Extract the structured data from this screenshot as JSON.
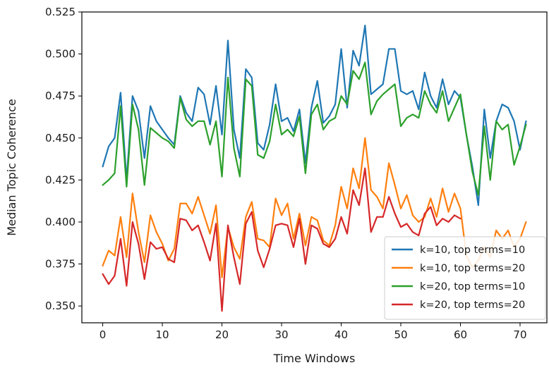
{
  "chart_data": {
    "type": "line",
    "title": "",
    "xlabel": "Time Windows",
    "ylabel": "Median Topic Coherence",
    "xlim": [
      -3.5,
      74.5
    ],
    "ylim": [
      0.34,
      0.525
    ],
    "x_ticks": [
      0,
      10,
      20,
      30,
      40,
      50,
      60,
      70
    ],
    "y_ticks": [
      0.35,
      0.375,
      0.4,
      0.425,
      0.45,
      0.475,
      0.5,
      0.525
    ],
    "y_tick_labels": [
      "0.350",
      "0.375",
      "0.400",
      "0.425",
      "0.450",
      "0.475",
      "0.500",
      "0.525"
    ],
    "grid": false,
    "legend_position": "lower-right",
    "series": [
      {
        "name": "k=10, top terms=10",
        "color": "#1f77b4",
        "x": [
          0,
          1,
          2,
          3,
          4,
          5,
          6,
          7,
          8,
          9,
          10,
          11,
          12,
          13,
          14,
          15,
          16,
          17,
          18,
          19,
          20,
          21,
          22,
          23,
          24,
          25,
          26,
          27,
          28,
          29,
          30,
          31,
          32,
          33,
          34,
          35,
          36,
          37,
          38,
          39,
          40,
          41,
          42,
          43,
          44,
          45,
          46,
          47,
          48,
          49,
          50,
          51,
          52,
          53,
          54,
          55,
          56,
          57,
          58,
          59,
          60,
          61,
          62,
          63,
          64,
          65,
          66,
          67,
          68,
          69,
          70,
          71
        ],
        "values": [
          0.433,
          0.445,
          0.45,
          0.477,
          0.425,
          0.475,
          0.466,
          0.438,
          0.469,
          0.46,
          0.455,
          0.45,
          0.446,
          0.475,
          0.465,
          0.46,
          0.48,
          0.476,
          0.458,
          0.481,
          0.452,
          0.508,
          0.455,
          0.438,
          0.491,
          0.486,
          0.447,
          0.443,
          0.458,
          0.482,
          0.46,
          0.462,
          0.454,
          0.467,
          0.435,
          0.468,
          0.484,
          0.459,
          0.463,
          0.47,
          0.503,
          0.468,
          0.502,
          0.493,
          0.517,
          0.476,
          0.479,
          0.482,
          0.503,
          0.503,
          0.478,
          0.476,
          0.478,
          0.467,
          0.489,
          0.475,
          0.468,
          0.485,
          0.47,
          0.478,
          0.474,
          0.452,
          0.433,
          0.41,
          0.467,
          0.438,
          0.46,
          0.47,
          0.468,
          0.46,
          0.443,
          0.46
        ]
      },
      {
        "name": "k=10, top terms=20",
        "color": "#ff7f0e",
        "x": [
          0,
          1,
          2,
          3,
          4,
          5,
          6,
          7,
          8,
          9,
          10,
          11,
          12,
          13,
          14,
          15,
          16,
          17,
          18,
          19,
          20,
          21,
          22,
          23,
          24,
          25,
          26,
          27,
          28,
          29,
          30,
          31,
          32,
          33,
          34,
          35,
          36,
          37,
          38,
          39,
          40,
          41,
          42,
          43,
          44,
          45,
          46,
          47,
          48,
          49,
          50,
          51,
          52,
          53,
          54,
          55,
          56,
          57,
          58,
          59,
          60,
          61,
          62,
          63,
          64,
          65,
          66,
          67,
          68,
          69,
          70,
          71
        ],
        "values": [
          0.374,
          0.383,
          0.38,
          0.403,
          0.379,
          0.417,
          0.394,
          0.376,
          0.404,
          0.394,
          0.387,
          0.377,
          0.384,
          0.411,
          0.411,
          0.405,
          0.415,
          0.404,
          0.393,
          0.41,
          0.367,
          0.397,
          0.385,
          0.378,
          0.403,
          0.412,
          0.39,
          0.389,
          0.385,
          0.414,
          0.404,
          0.411,
          0.39,
          0.405,
          0.386,
          0.403,
          0.401,
          0.389,
          0.386,
          0.398,
          0.421,
          0.408,
          0.432,
          0.42,
          0.45,
          0.419,
          0.415,
          0.408,
          0.435,
          0.422,
          0.408,
          0.416,
          0.404,
          0.4,
          0.403,
          0.414,
          0.403,
          0.42,
          0.406,
          0.417,
          0.408,
          0.38,
          0.373,
          0.377,
          0.385,
          0.379,
          0.395,
          0.39,
          0.395,
          0.385,
          0.39,
          0.4
        ]
      },
      {
        "name": "k=20, top terms=10",
        "color": "#2ca02c",
        "x": [
          0,
          1,
          2,
          3,
          4,
          5,
          6,
          7,
          8,
          9,
          10,
          11,
          12,
          13,
          14,
          15,
          16,
          17,
          18,
          19,
          20,
          21,
          22,
          23,
          24,
          25,
          26,
          27,
          28,
          29,
          30,
          31,
          32,
          33,
          34,
          35,
          36,
          37,
          38,
          39,
          40,
          41,
          42,
          43,
          44,
          45,
          46,
          47,
          48,
          49,
          50,
          51,
          52,
          53,
          54,
          55,
          56,
          57,
          58,
          59,
          60,
          61,
          62,
          63,
          64,
          65,
          66,
          67,
          68,
          69,
          70,
          71
        ],
        "values": [
          0.422,
          0.425,
          0.429,
          0.469,
          0.421,
          0.47,
          0.455,
          0.422,
          0.456,
          0.453,
          0.45,
          0.448,
          0.444,
          0.474,
          0.461,
          0.457,
          0.46,
          0.46,
          0.446,
          0.46,
          0.427,
          0.486,
          0.444,
          0.427,
          0.485,
          0.481,
          0.44,
          0.438,
          0.448,
          0.47,
          0.452,
          0.455,
          0.451,
          0.463,
          0.429,
          0.464,
          0.47,
          0.455,
          0.46,
          0.462,
          0.475,
          0.47,
          0.49,
          0.485,
          0.495,
          0.464,
          0.472,
          0.476,
          0.479,
          0.482,
          0.457,
          0.462,
          0.464,
          0.462,
          0.478,
          0.47,
          0.465,
          0.478,
          0.46,
          0.468,
          0.476,
          0.452,
          0.43,
          0.416,
          0.457,
          0.425,
          0.46,
          0.455,
          0.458,
          0.434,
          0.445,
          0.458
        ]
      },
      {
        "name": "k=20, top terms=20",
        "color": "#d62728",
        "x": [
          0,
          1,
          2,
          3,
          4,
          5,
          6,
          7,
          8,
          9,
          10,
          11,
          12,
          13,
          14,
          15,
          16,
          17,
          18,
          19,
          20,
          21,
          22,
          23,
          24,
          25,
          26,
          27,
          28,
          29,
          30,
          31,
          32,
          33,
          34,
          35,
          36,
          37,
          38,
          39,
          40,
          41,
          42,
          43,
          44,
          45,
          46,
          47,
          48,
          49,
          50,
          51,
          52,
          53,
          54,
          55,
          56,
          57,
          58,
          59,
          60
        ],
        "values": [
          0.369,
          0.363,
          0.368,
          0.39,
          0.362,
          0.4,
          0.387,
          0.366,
          0.388,
          0.384,
          0.385,
          0.378,
          0.376,
          0.402,
          0.401,
          0.395,
          0.398,
          0.388,
          0.377,
          0.399,
          0.347,
          0.398,
          0.379,
          0.363,
          0.399,
          0.406,
          0.383,
          0.373,
          0.384,
          0.398,
          0.399,
          0.398,
          0.385,
          0.402,
          0.375,
          0.398,
          0.396,
          0.387,
          0.385,
          0.39,
          0.403,
          0.393,
          0.419,
          0.41,
          0.432,
          0.394,
          0.403,
          0.403,
          0.415,
          0.405,
          0.397,
          0.399,
          0.394,
          0.392,
          0.405,
          0.409,
          0.398,
          0.402,
          0.4,
          0.404,
          0.402
        ]
      }
    ]
  }
}
